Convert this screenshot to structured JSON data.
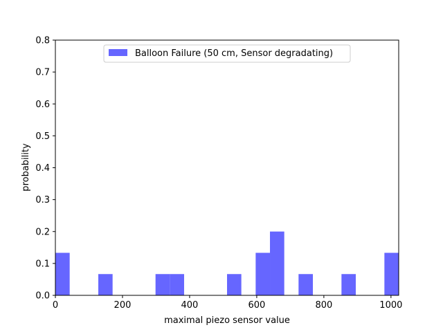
{
  "chart_data": {
    "type": "bar",
    "subtype": "histogram",
    "xlabel": "maximal piezo sensor value",
    "ylabel": "probability",
    "xlim": [
      0,
      1023
    ],
    "ylim": [
      0,
      0.8
    ],
    "xticks": [
      0,
      200,
      400,
      600,
      800,
      1000
    ],
    "yticks": [
      0.0,
      0.1,
      0.2,
      0.3,
      0.4,
      0.5,
      0.6,
      0.7,
      0.8
    ],
    "xtick_labels": [
      "0",
      "200",
      "400",
      "600",
      "800",
      "1000"
    ],
    "ytick_labels": [
      "0.0",
      "0.1",
      "0.2",
      "0.3",
      "0.4",
      "0.5",
      "0.6",
      "0.7",
      "0.8"
    ],
    "grid": false,
    "legend": {
      "placement": "upper center"
    },
    "series": [
      {
        "name": "Balloon Failure (50 cm, Sensor degradating)",
        "color": "#6666ff",
        "bins": [
          {
            "x0": 0,
            "x1": 42.6,
            "value": 0.1333
          },
          {
            "x0": 127.9,
            "x1": 170.5,
            "value": 0.0667
          },
          {
            "x0": 298.4,
            "x1": 341.0,
            "value": 0.0667
          },
          {
            "x0": 341.0,
            "x1": 383.6,
            "value": 0.0667
          },
          {
            "x0": 511.5,
            "x1": 554.1,
            "value": 0.0667
          },
          {
            "x0": 596.8,
            "x1": 639.4,
            "value": 0.1333
          },
          {
            "x0": 639.4,
            "x1": 682.0,
            "value": 0.2
          },
          {
            "x0": 724.6,
            "x1": 767.3,
            "value": 0.0667
          },
          {
            "x0": 852.5,
            "x1": 895.1,
            "value": 0.0667
          },
          {
            "x0": 980.4,
            "x1": 1023,
            "value": 0.1333
          }
        ]
      }
    ]
  }
}
